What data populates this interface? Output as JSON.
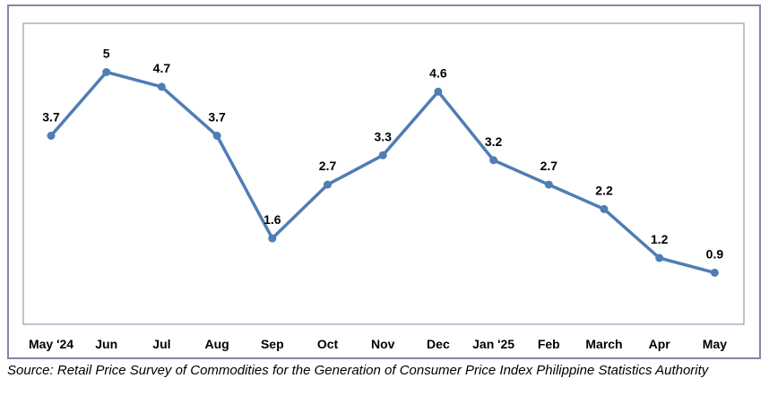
{
  "chart_data": {
    "type": "line",
    "title": "",
    "xlabel": "",
    "ylabel": "",
    "categories": [
      "May '24",
      "Jun",
      "Jul",
      "Aug",
      "Sep",
      "Oct",
      "Nov",
      "Dec",
      "Jan '25",
      "Feb",
      "March",
      "Apr",
      "May"
    ],
    "series": [
      {
        "values": [
          3.7,
          5,
          4.7,
          3.7,
          1.6,
          2.7,
          3.3,
          4.6,
          3.2,
          2.7,
          2.2,
          1.2,
          0.9
        ],
        "labels": [
          "3.7",
          "5",
          "4.7",
          "3.7",
          "1.6",
          "2.7",
          "3.3",
          "4.6",
          "3.2",
          "2.7",
          "2.2",
          "1.2",
          "0.9"
        ]
      }
    ],
    "ylim": [
      0,
      6
    ],
    "grid": false,
    "legend": "none",
    "line_color": "#4f7db4",
    "frame_color": "#8e80a8"
  },
  "caption": "Source: Retail Price Survey of Commodities for the Generation of Consumer Price Index Philippine Statistics Authority"
}
